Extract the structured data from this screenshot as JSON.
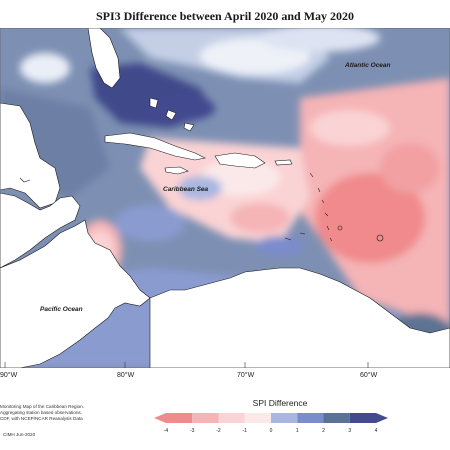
{
  "title": "SPI3 Difference between April 2020 and May 2020",
  "ocean_labels": {
    "atlantic": "Atlantic Ocean",
    "caribbean": "Caribbean Sea",
    "pacific": "Pacific Ocean"
  },
  "longitude_labels": [
    "90°W",
    "80°W",
    "70°W",
    "60°W"
  ],
  "legend": {
    "title": "SPI Difference",
    "ticks": [
      "-4",
      "-3",
      "-2",
      "-1",
      "0",
      "1",
      "2",
      "3",
      "4"
    ],
    "colors": [
      "#f08a8c",
      "#f5b4b6",
      "#fad3d4",
      "#fbe9ea",
      "#d7eaf0",
      "#a9b6e0",
      "#7b8ccc",
      "#5b7393",
      "#434a8f"
    ]
  },
  "credits": [
    "Monitoring Map of the Caribbean Region.",
    "Aggregating station based observations,",
    "CDF, with NCEP/NCAR Reanalysis Data"
  ],
  "copyright": "CIMH Jun-2020",
  "colors": {
    "land": "#ffffff",
    "coast": "#1a1a1a"
  }
}
